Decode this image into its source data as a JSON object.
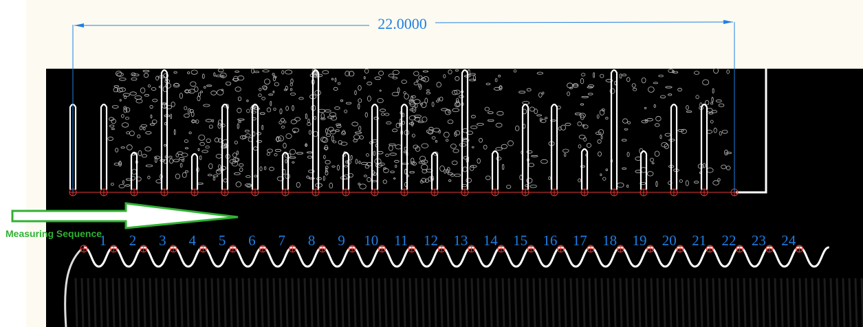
{
  "dimension": {
    "value": "22.0000"
  },
  "sequence_label": "Measuring Sequence",
  "crest_labels": [
    "1",
    "2",
    "3",
    "4",
    "5",
    "6",
    "7",
    "8",
    "9",
    "10",
    "11",
    "12",
    "13",
    "14",
    "15",
    "16",
    "17",
    "18",
    "19",
    "20",
    "21",
    "22",
    "23",
    "24"
  ],
  "colors": {
    "background_frame": "#fdfbf1",
    "image_bg": "#000000",
    "dimension": "#1e7fe6",
    "marker": "#e53935",
    "arrow": "#2fb233",
    "label": "#1e7fe6",
    "edge": "#ffffff"
  },
  "icons": {
    "sequence_arrow": "right-arrow-outline-icon",
    "measure_point": "circle-crosshair-icon"
  }
}
